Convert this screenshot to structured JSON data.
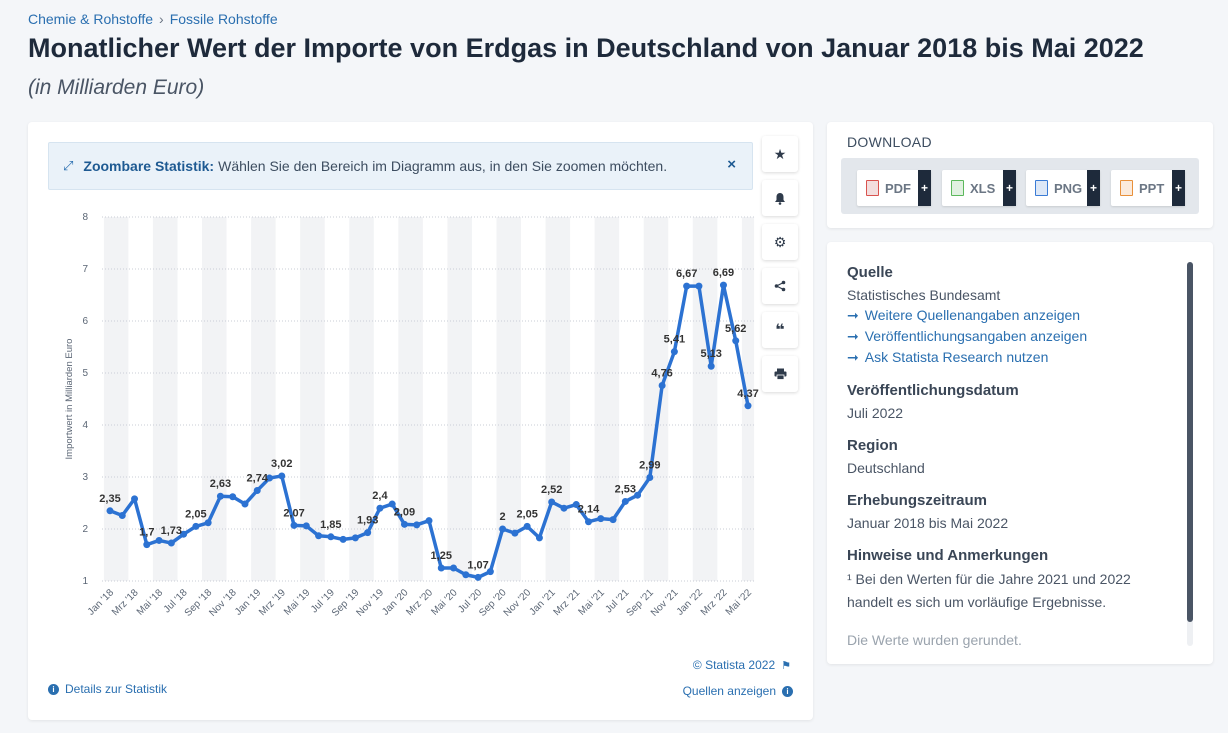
{
  "breadcrumb": {
    "item1": "Chemie & Rohstoffe",
    "sep": "›",
    "item2": "Fossile Rohstoffe"
  },
  "page": {
    "title": "Monatlicher Wert der Importe von Erdgas in Deutschland von Januar 2018 bis Mai 2022",
    "subtitle": "(in Milliarden Euro)"
  },
  "zoom_banner": {
    "label": "Zoombare Statistik:",
    "text": "Wählen Sie den Bereich im Diagramm aus, in den Sie zoomen möchten.",
    "close": "×"
  },
  "toolbar": {
    "icons": [
      "star-icon",
      "bell-icon",
      "gear-icon",
      "share-icon",
      "quote-icon",
      "print-icon"
    ]
  },
  "footer": {
    "copyright": "© Statista 2022",
    "details": "Details zur Statistik",
    "sources": "Quellen anzeigen"
  },
  "download": {
    "title": "DOWNLOAD",
    "buttons": [
      {
        "label": "PDF",
        "color": "#d9534f"
      },
      {
        "label": "XLS",
        "color": "#5cb85c"
      },
      {
        "label": "PNG",
        "color": "#3a7bd5"
      },
      {
        "label": "PPT",
        "color": "#e8903a"
      }
    ],
    "plus": "+"
  },
  "info": {
    "source_h": "Quelle",
    "source_t": "Statistisches Bundesamt",
    "links": [
      "Weitere Quellenangaben anzeigen",
      "Veröffentlichungsangaben anzeigen",
      "Ask Statista Research nutzen"
    ],
    "pubdate_h": "Veröffentlichungsdatum",
    "pubdate_t": "Juli 2022",
    "region_h": "Region",
    "region_t": "Deutschland",
    "period_h": "Erhebungszeitraum",
    "period_t": "Januar 2018 bis Mai 2022",
    "notes_h": "Hinweise und Anmerkungen",
    "notes_t": "¹ Bei den Werten für die Jahre 2021 und 2022 handelt es sich um vorläufige Ergebnisse.",
    "notes_more": "Die Werte wurden gerundet."
  },
  "chart_data": {
    "type": "line",
    "ylabel": "Importwert in Milliarden Euro",
    "ylim": [
      1,
      8
    ],
    "yticks": [
      1,
      2,
      3,
      4,
      5,
      6,
      7,
      8
    ],
    "grid": true,
    "line_color": "#2c72d2",
    "x": [
      "Jan '18",
      "Feb '18",
      "Mrz '18",
      "Apr '18",
      "Mai '18",
      "Jun '18",
      "Jul '18",
      "Aug '18",
      "Sep '18",
      "Okt '18",
      "Nov '18",
      "Dez '18",
      "Jan '19",
      "Feb '19",
      "Mrz '19",
      "Apr '19",
      "Mai '19",
      "Jun '19",
      "Jul '19",
      "Aug '19",
      "Sep '19",
      "Okt '19",
      "Nov '19",
      "Dez '19",
      "Jan '20",
      "Feb '20",
      "Mrz '20",
      "Apr '20",
      "Mai '20",
      "Jun '20",
      "Jul '20",
      "Aug '20",
      "Sep '20",
      "Okt '20",
      "Nov '20",
      "Dez '20",
      "Jan '21",
      "Feb '21",
      "Mrz '21",
      "Apr '21",
      "Mai '21",
      "Jun '21",
      "Jul '21",
      "Aug '21",
      "Sep '21",
      "Okt '21",
      "Nov '21",
      "Dez '21",
      "Jan '22",
      "Feb '22",
      "Mrz '22",
      "Apr '22",
      "Mai '22"
    ],
    "xtick_labels": [
      "Jan '18",
      "Mrz '18",
      "Mai '18",
      "Jul '18",
      "Sep '18",
      "Nov '18",
      "Jan '19",
      "Mrz '19",
      "Mai '19",
      "Jul '19",
      "Sep '19",
      "Nov '19",
      "Jan '20",
      "Mrz '20",
      "Mai '20",
      "Jul '20",
      "Sep '20",
      "Nov '20",
      "Jan '21",
      "Mrz '21",
      "Mai '21",
      "Jul '21",
      "Sep '21",
      "Nov '21",
      "Jan '22",
      "Mrz '22",
      "Mai '22"
    ],
    "values": [
      2.35,
      2.26,
      2.58,
      1.7,
      1.78,
      1.73,
      1.9,
      2.05,
      2.12,
      2.63,
      2.62,
      2.48,
      2.74,
      2.98,
      3.02,
      2.07,
      2.06,
      1.87,
      1.85,
      1.8,
      1.83,
      1.93,
      2.4,
      2.48,
      2.09,
      2.08,
      2.16,
      1.25,
      1.25,
      1.12,
      1.07,
      1.18,
      2.0,
      1.92,
      2.05,
      1.83,
      2.52,
      2.4,
      2.47,
      2.14,
      2.2,
      2.18,
      2.53,
      2.65,
      2.99,
      4.76,
      5.41,
      6.67,
      6.67,
      5.13,
      6.69,
      5.62,
      4.37
    ],
    "data_labels": [
      {
        "i": 0,
        "text": "2,35"
      },
      {
        "i": 3,
        "text": "1,7"
      },
      {
        "i": 5,
        "text": "1,73"
      },
      {
        "i": 7,
        "text": "2,05"
      },
      {
        "i": 9,
        "text": "2,63"
      },
      {
        "i": 12,
        "text": "2,74"
      },
      {
        "i": 14,
        "text": "3,02"
      },
      {
        "i": 15,
        "text": "2,07"
      },
      {
        "i": 18,
        "text": "1,85"
      },
      {
        "i": 21,
        "text": "1,93"
      },
      {
        "i": 22,
        "text": "2,4"
      },
      {
        "i": 24,
        "text": "2,09"
      },
      {
        "i": 27,
        "text": "1,25"
      },
      {
        "i": 30,
        "text": "1,07"
      },
      {
        "i": 32,
        "text": "2"
      },
      {
        "i": 34,
        "text": "2,05"
      },
      {
        "i": 36,
        "text": "2,52"
      },
      {
        "i": 39,
        "text": "2,14"
      },
      {
        "i": 42,
        "text": "2,53"
      },
      {
        "i": 44,
        "text": "2,99"
      },
      {
        "i": 45,
        "text": "4,76"
      },
      {
        "i": 46,
        "text": "5,41"
      },
      {
        "i": 47,
        "text": "6,67"
      },
      {
        "i": 49,
        "text": "5,13"
      },
      {
        "i": 50,
        "text": "6,69"
      },
      {
        "i": 51,
        "text": "5,62"
      },
      {
        "i": 52,
        "text": "4,37"
      }
    ]
  }
}
